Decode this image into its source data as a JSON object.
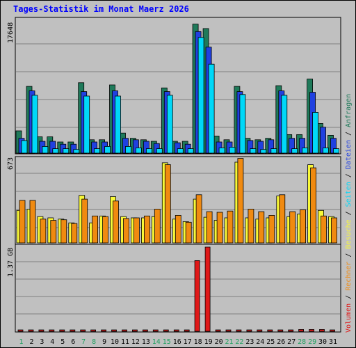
{
  "chart_data": {
    "type": "bar",
    "title": "Tages-Statistik im Monat Maerz 2026",
    "colors": {
      "background": "#c0c0c0",
      "title": "#0000ff",
      "grid": "#808080",
      "anfragen": "#1f7a5a",
      "dateien": "#2040e0",
      "seiten": "#00d8f8",
      "besuche": "#f8f838",
      "rechner": "#f08a10",
      "volumen": "#e01818",
      "weekend": "#20a060",
      "weekday": "#000000",
      "separator": "#000000"
    },
    "categories": [
      "1",
      "2",
      "3",
      "4",
      "5",
      "6",
      "7",
      "8",
      "9",
      "10",
      "11",
      "12",
      "13",
      "14",
      "15",
      "16",
      "17",
      "18",
      "19",
      "20",
      "21",
      "22",
      "23",
      "24",
      "25",
      "26",
      "27",
      "28",
      "29",
      "30",
      "31"
    ],
    "weekend_days": [
      1,
      7,
      8,
      14,
      15,
      21,
      22,
      28,
      29
    ],
    "legend": {
      "items": [
        {
          "label": "Volumen",
          "color_key": "volumen"
        },
        {
          "label": "Rechner",
          "color_key": "rechner"
        },
        {
          "label": "Besuche",
          "color_key": "besuche"
        },
        {
          "label": "Seiten",
          "color_key": "seiten"
        },
        {
          "label": "Dateien",
          "color_key": "dateien"
        },
        {
          "label": "Anfragen",
          "color_key": "anfragen"
        }
      ],
      "separator": " / "
    },
    "panels": [
      {
        "name": "hits",
        "max_label": "17648",
        "ylim": [
          0,
          17648
        ],
        "series": [
          {
            "name": "Anfragen",
            "color_key": "anfragen",
            "values": [
              3000,
              9000,
              2200,
              2200,
              1500,
              1500,
              9500,
              1800,
              1800,
              9200,
              2700,
              2000,
              1800,
              1600,
              8800,
              1600,
              1600,
              17400,
              16800,
              2300,
              1800,
              9000,
              2000,
              1800,
              2000,
              9100,
              2500,
              2500,
              10000,
              4000,
              2400
            ]
          },
          {
            "name": "Dateien",
            "color_key": "dateien",
            "values": [
              2000,
              8400,
              1600,
              1600,
              1200,
              1200,
              8300,
              1500,
              1500,
              8400,
              2000,
              1800,
              1600,
              1300,
              8300,
              1400,
              1200,
              16400,
              14300,
              1500,
              1500,
              8300,
              1700,
              1600,
              1800,
              8400,
              2000,
              2000,
              8200,
              3500,
              2000
            ]
          },
          {
            "name": "Seiten",
            "color_key": "seiten",
            "values": [
              1700,
              7800,
              900,
              600,
              600,
              500,
              7700,
              600,
              900,
              7700,
              900,
              700,
              600,
              600,
              7800,
              600,
              600,
              15600,
              12000,
              700,
              800,
              7900,
              600,
              500,
              600,
              7800,
              600,
              700,
              5500,
              700,
              600
            ]
          }
        ]
      },
      {
        "name": "visits",
        "max_label": "673",
        "ylim": [
          0,
          673
        ],
        "series": [
          {
            "name": "Besuche",
            "color_key": "besuche",
            "values": [
              260,
              270,
              210,
              200,
              190,
              160,
              380,
              160,
              215,
              370,
              210,
              200,
              200,
              210,
              640,
              190,
              170,
              350,
              205,
              180,
              200,
              645,
              200,
              190,
              200,
              375,
              210,
              230,
              625,
              260,
              210
            ]
          },
          {
            "name": "Rechner",
            "color_key": "rechner",
            "values": [
              340,
              340,
              190,
              180,
              185,
              155,
              350,
              215,
              210,
              335,
              195,
              200,
              215,
              270,
              625,
              220,
              165,
              385,
              250,
              245,
              255,
              675,
              270,
              250,
              220,
              385,
              250,
              265,
              600,
              215,
              200
            ]
          }
        ]
      },
      {
        "name": "volume",
        "max_label": "1.37 GB",
        "ylim": [
          0,
          1.37
        ],
        "series": [
          {
            "name": "Volumen",
            "color_key": "volumen",
            "values": [
              0.02,
              0.02,
              0.02,
              0.02,
              0.02,
              0.02,
              0.02,
              0.02,
              0.02,
              0.02,
              0.02,
              0.02,
              0.02,
              0.02,
              0.02,
              0.02,
              0.02,
              1.15,
              1.37,
              0.02,
              0.02,
              0.02,
              0.02,
              0.02,
              0.02,
              0.02,
              0.02,
              0.03,
              0.03,
              0.03,
              0.02
            ]
          }
        ]
      }
    ]
  }
}
